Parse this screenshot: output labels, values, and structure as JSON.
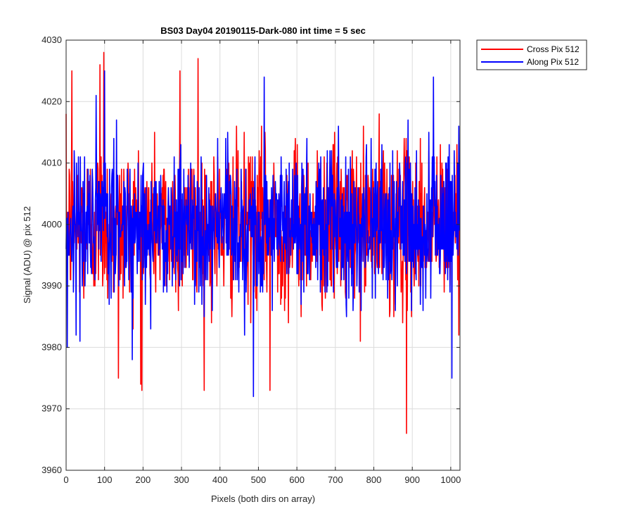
{
  "chart_data": {
    "type": "line",
    "title": "BS03 Day04 20190115-Dark-080 int time = 5 sec",
    "xlabel": "Pixels (both dirs on array)",
    "ylabel": "Signal (ADU) @ pix 512",
    "xlim": [
      0,
      1024
    ],
    "ylim": [
      3960,
      4030
    ],
    "xticks": [
      0,
      100,
      200,
      300,
      400,
      500,
      600,
      700,
      800,
      900,
      1000
    ],
    "yticks": [
      3960,
      3970,
      3980,
      3990,
      4000,
      4010,
      4020,
      4030
    ],
    "grid": true,
    "legend_position": "outside-top-right",
    "series_note": "approximately 1024 noisy samples per series, centered near 4000 ADU; notable extremes listed as peaks",
    "series": [
      {
        "name": "Cross Pix 512",
        "color": "#ff0000",
        "mean": 4000,
        "std": 6.5,
        "n": 1024,
        "peaks": [
          {
            "x": 15,
            "y": 4025
          },
          {
            "x": 88,
            "y": 4026
          },
          {
            "x": 98,
            "y": 4028
          },
          {
            "x": 136,
            "y": 3975
          },
          {
            "x": 197,
            "y": 3973
          },
          {
            "x": 296,
            "y": 4025
          },
          {
            "x": 343,
            "y": 4027
          },
          {
            "x": 530,
            "y": 3973
          },
          {
            "x": 885,
            "y": 3966
          }
        ]
      },
      {
        "name": "Along Pix 512",
        "color": "#0000ff",
        "mean": 4000,
        "std": 6.0,
        "n": 1024,
        "peaks": [
          {
            "x": 3,
            "y": 3980
          },
          {
            "x": 100,
            "y": 4025
          },
          {
            "x": 487,
            "y": 3972
          },
          {
            "x": 515,
            "y": 4024
          },
          {
            "x": 955,
            "y": 4024
          },
          {
            "x": 1003,
            "y": 3975
          }
        ]
      }
    ]
  }
}
